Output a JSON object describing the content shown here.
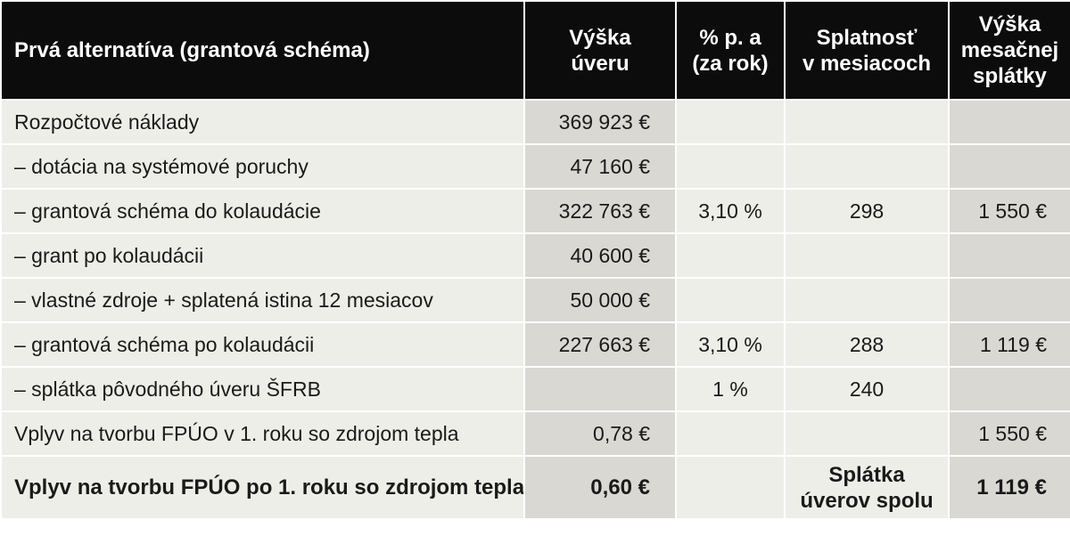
{
  "headers": [
    "Prvá alternatíva (grantová schéma)",
    "Výška\núveru",
    "% p. a\n(za rok)",
    "Splatnosť\nv mesiacoch",
    "Výška\nmesačnej\nsplátky"
  ],
  "rows": [
    {
      "label": "Rozpočtové náklady",
      "loan": "369 923 €",
      "rate": "",
      "months": "",
      "payment": ""
    },
    {
      "label": "– dotácia na systémové poruchy",
      "loan": "47 160 €",
      "rate": "",
      "months": "",
      "payment": ""
    },
    {
      "label": "– grantová schéma do kolaudácie",
      "loan": "322 763 €",
      "rate": "3,10 %",
      "months": "298",
      "payment": "1 550 €"
    },
    {
      "label": "– grant po kolaudácii",
      "loan": "40 600 €",
      "rate": "",
      "months": "",
      "payment": ""
    },
    {
      "label": "– vlastné zdroje + splatená istina 12 mesiacov",
      "loan": "50 000 €",
      "rate": "",
      "months": "",
      "payment": ""
    },
    {
      "label": "– grantová schéma po kolaudácii",
      "loan": "227 663 €",
      "rate": "3,10 %",
      "months": "288",
      "payment": "1 119 €"
    },
    {
      "label": "– splátka pôvodného úveru ŠFRB",
      "loan": "",
      "rate": "1 %",
      "months": "240",
      "payment": ""
    },
    {
      "label": "Vplyv na tvorbu FPÚO v 1. roku so zdrojom tepla",
      "loan": "0,78 €",
      "rate": "",
      "months": "",
      "payment": "1 550 €"
    }
  ],
  "final_row": {
    "label": "Vplyv na tvorbu FPÚO po 1. roku so zdrojom tepla",
    "loan": "0,60 €",
    "rate": "",
    "months": "Splátka\núverov spolu",
    "payment": "1 119 €"
  }
}
